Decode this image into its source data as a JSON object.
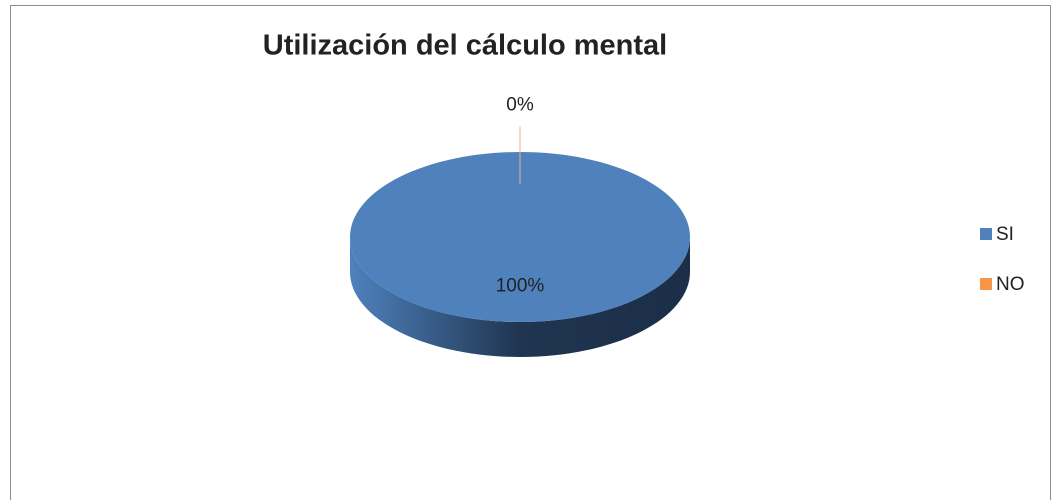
{
  "chart_data": {
    "type": "pie",
    "title": "Utilización del cálculo mental",
    "categories": [
      "SI",
      "NO"
    ],
    "values": [
      100,
      0
    ],
    "value_labels": [
      "100%",
      "0%"
    ],
    "colors": [
      "#4f81bd",
      "#f79646"
    ],
    "legend": "right"
  }
}
